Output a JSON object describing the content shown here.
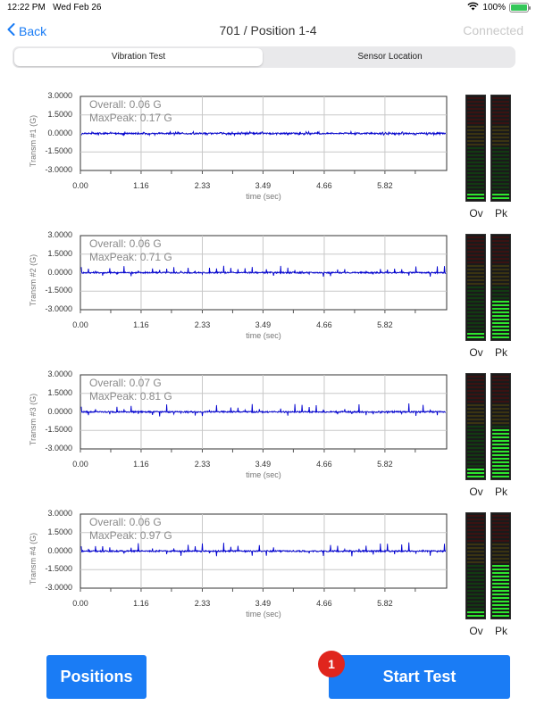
{
  "status_bar": {
    "time": "12:22 PM",
    "date": "Wed Feb 26",
    "battery": "100%"
  },
  "nav": {
    "back_label": "Back",
    "title": "701 / Position 1-4",
    "connection_status": "Connected"
  },
  "segmented_control": {
    "options": [
      "Vibration Test",
      "Sensor Location"
    ],
    "selected": "Vibration Test"
  },
  "x_ticks": [
    "0.00",
    "1.16",
    "2.33",
    "3.49",
    "4.66",
    "5.82"
  ],
  "y_ticks": [
    "3.0000",
    "1.5000",
    "0.0000",
    "-1.5000",
    "-3.0000"
  ],
  "x_axis_label": "time (sec)",
  "meter_labels": {
    "overall": "Ov",
    "peak": "Pk"
  },
  "chart_data": [
    {
      "type": "line",
      "ylabel": "Transm #1 (G)",
      "xlabel": "time (sec)",
      "ylim": [
        -3,
        3
      ],
      "xlim": [
        0,
        7.0
      ],
      "overall": "Overall: 0.06 G",
      "max_peak": "MaxPeak: 0.17 G",
      "overall_value": 0.06,
      "max_peak_value": 0.17,
      "color": "#0000d0"
    },
    {
      "type": "line",
      "ylabel": "Transm #2 (G)",
      "xlabel": "time (sec)",
      "ylim": [
        -3,
        3
      ],
      "xlim": [
        0,
        7.0
      ],
      "overall": "Overall: 0.06 G",
      "max_peak": "MaxPeak: 0.71 G",
      "overall_value": 0.06,
      "max_peak_value": 0.71,
      "color": "#0000d0"
    },
    {
      "type": "line",
      "ylabel": "Transm #3 (G)",
      "xlabel": "time (sec)",
      "ylim": [
        -3,
        3
      ],
      "xlim": [
        0,
        7.0
      ],
      "overall": "Overall: 0.07 G",
      "max_peak": "MaxPeak: 0.81 G",
      "overall_value": 0.07,
      "max_peak_value": 0.81,
      "color": "#0000d0"
    },
    {
      "type": "line",
      "ylabel": "Transm #4 (G)",
      "xlabel": "time (sec)",
      "ylim": [
        -3,
        3
      ],
      "xlim": [
        0,
        7.0
      ],
      "overall": "Overall: 0.06 G",
      "max_peak": "MaxPeak: 0.97 G",
      "overall_value": 0.06,
      "max_peak_value": 0.97,
      "color": "#0000d0"
    }
  ],
  "meters": [
    {
      "overall_level": 0.06,
      "peak_level": 0.06
    },
    {
      "overall_level": 0.06,
      "peak_level": 0.35
    },
    {
      "overall_level": 0.08,
      "peak_level": 0.45
    },
    {
      "overall_level": 0.06,
      "peak_level": 0.49
    }
  ],
  "buttons": {
    "positions": "Positions",
    "start_test": "Start Test",
    "start_badge": "1"
  },
  "colors": {
    "accent": "#1a7cf5",
    "badge": "#e0251d",
    "meter_green": "#2ee62e",
    "meter_red": "#b01515",
    "meter_yellow": "#c9b400"
  }
}
